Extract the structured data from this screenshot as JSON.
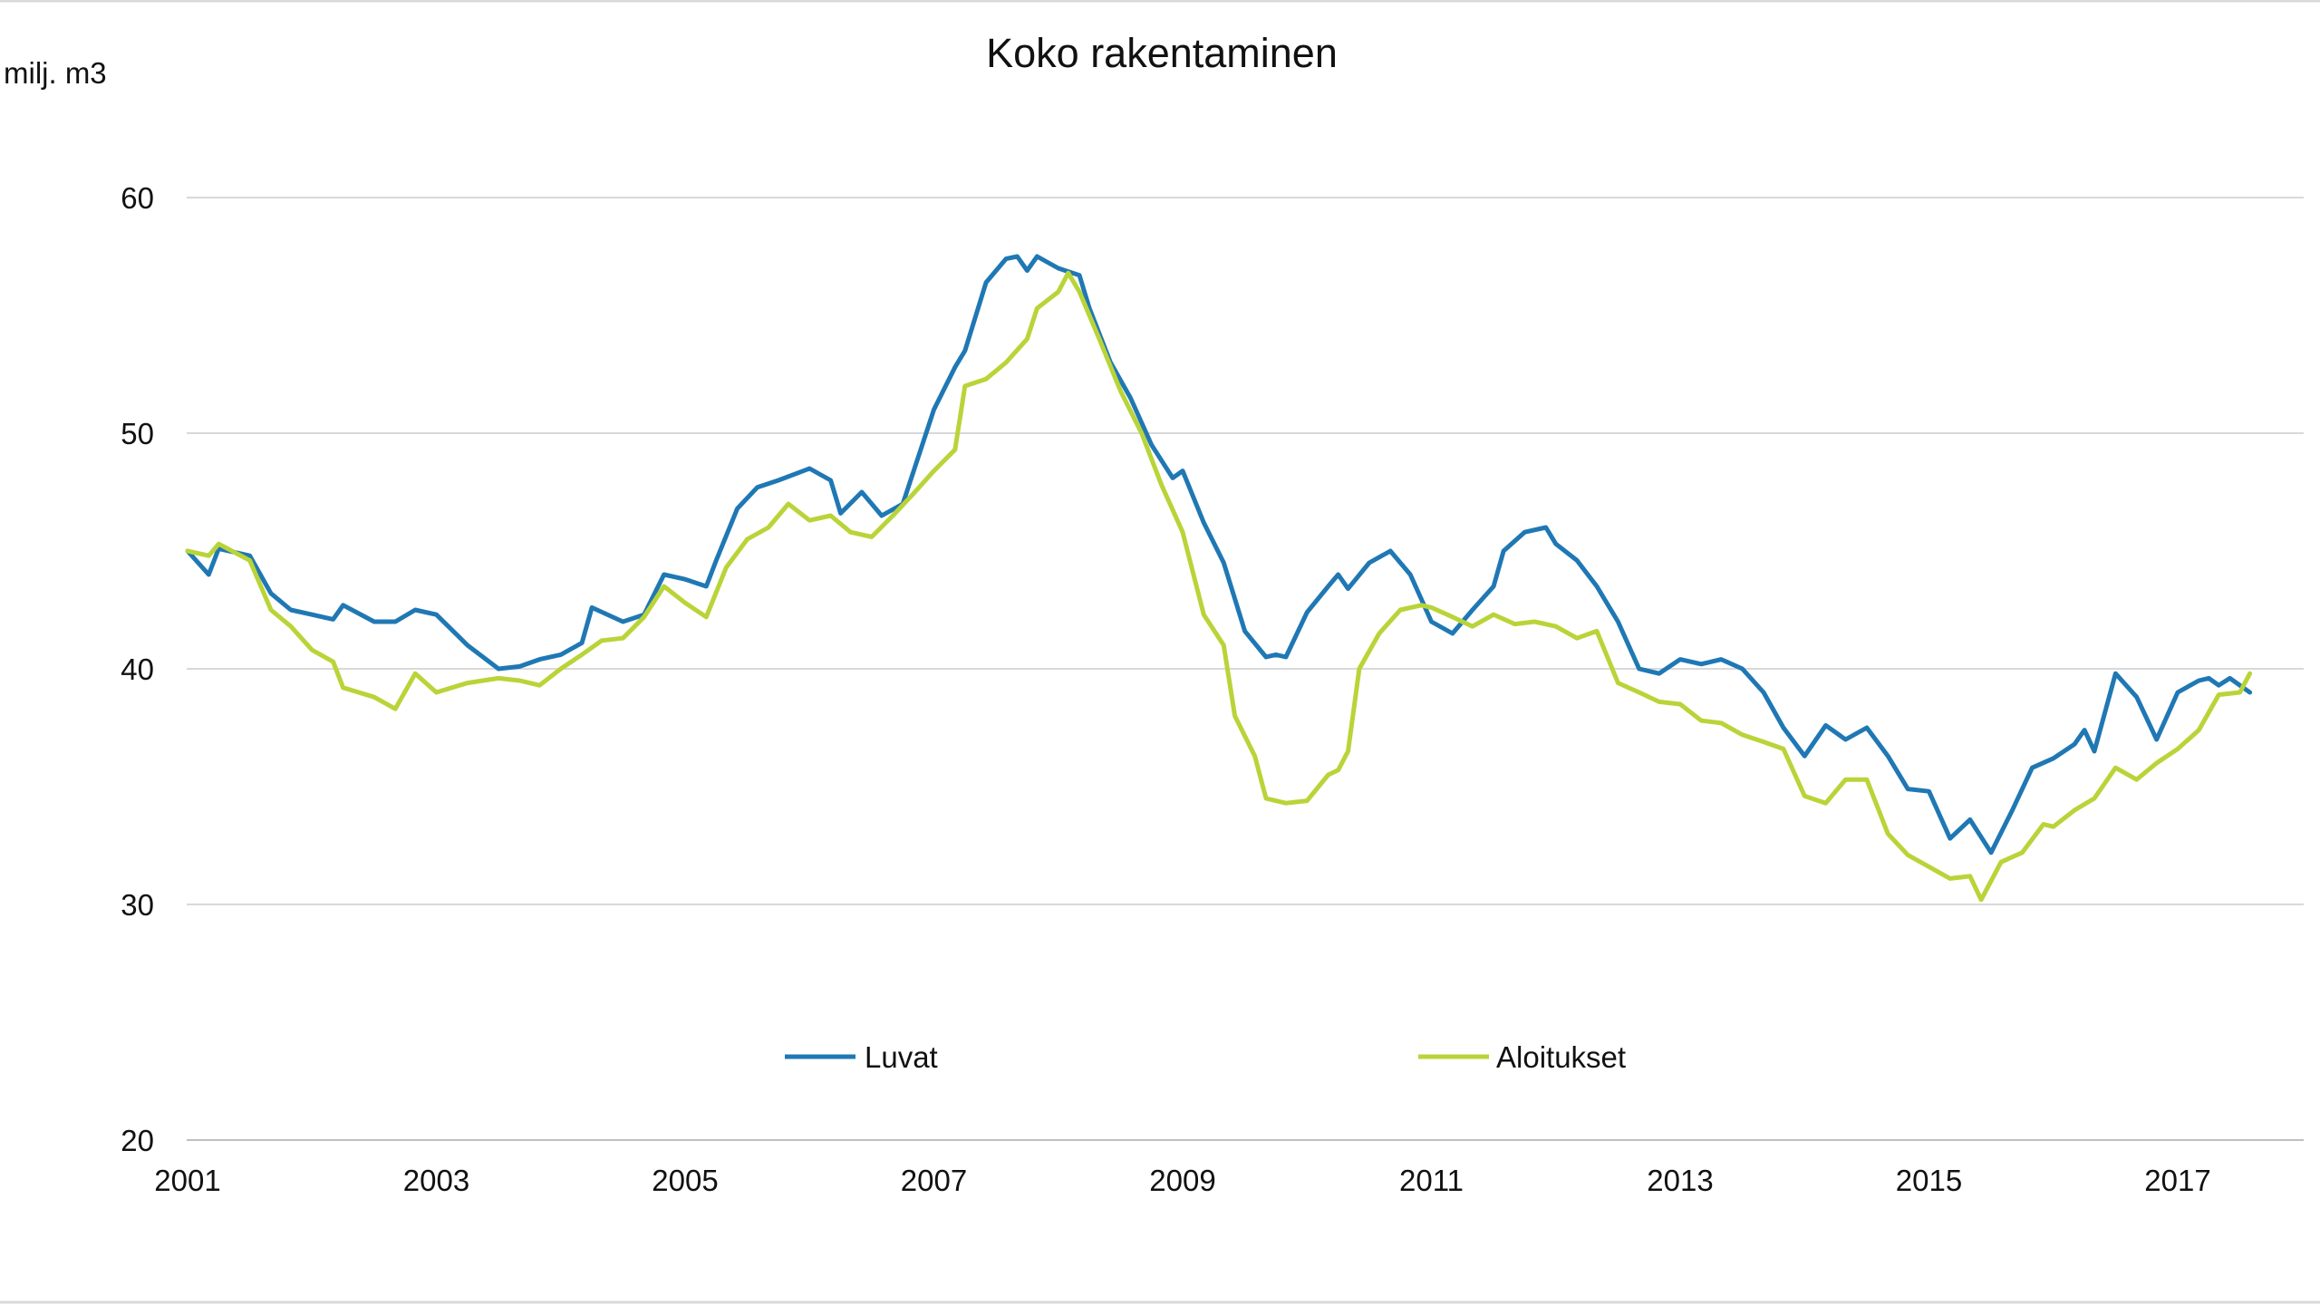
{
  "chart_data": {
    "type": "line",
    "title": "Koko rakentaminen",
    "ylabel": "milj. m3",
    "xlabel": "",
    "ylim": [
      20,
      60
    ],
    "xlim": [
      2001,
      2017.83
    ],
    "yticks": [
      20,
      30,
      40,
      50,
      60
    ],
    "xticks": [
      "2001",
      "2003",
      "2005",
      "2007",
      "2009",
      "2011",
      "2013",
      "2015",
      "2017"
    ],
    "grid": true,
    "legend_position": "inside-bottom-center",
    "series": [
      {
        "name": "Luvat",
        "color": "#1f78b4",
        "points": [
          [
            2001.0,
            45.0
          ],
          [
            2001.17,
            44.0
          ],
          [
            2001.25,
            45.1
          ],
          [
            2001.5,
            44.8
          ],
          [
            2001.67,
            43.2
          ],
          [
            2001.83,
            42.5
          ],
          [
            2002.0,
            42.3
          ],
          [
            2002.17,
            42.1
          ],
          [
            2002.25,
            42.7
          ],
          [
            2002.5,
            42.0
          ],
          [
            2002.67,
            42.0
          ],
          [
            2002.83,
            42.5
          ],
          [
            2003.0,
            42.3
          ],
          [
            2003.25,
            41.0
          ],
          [
            2003.5,
            40.0
          ],
          [
            2003.67,
            40.1
          ],
          [
            2003.83,
            40.4
          ],
          [
            2004.0,
            40.6
          ],
          [
            2004.17,
            41.1
          ],
          [
            2004.25,
            42.6
          ],
          [
            2004.5,
            42.0
          ],
          [
            2004.67,
            42.3
          ],
          [
            2004.83,
            44.0
          ],
          [
            2005.0,
            43.8
          ],
          [
            2005.17,
            43.5
          ],
          [
            2005.25,
            44.6
          ],
          [
            2005.42,
            46.8
          ],
          [
            2005.58,
            47.7
          ],
          [
            2005.75,
            48.0
          ],
          [
            2006.0,
            48.5
          ],
          [
            2006.17,
            48.0
          ],
          [
            2006.25,
            46.6
          ],
          [
            2006.42,
            47.5
          ],
          [
            2006.58,
            46.5
          ],
          [
            2006.75,
            47.0
          ],
          [
            2007.0,
            51.0
          ],
          [
            2007.17,
            52.8
          ],
          [
            2007.25,
            53.5
          ],
          [
            2007.42,
            56.4
          ],
          [
            2007.58,
            57.4
          ],
          [
            2007.67,
            57.5
          ],
          [
            2007.75,
            56.9
          ],
          [
            2007.83,
            57.5
          ],
          [
            2008.0,
            57.0
          ],
          [
            2008.17,
            56.7
          ],
          [
            2008.25,
            55.3
          ],
          [
            2008.42,
            53.0
          ],
          [
            2008.58,
            51.5
          ],
          [
            2008.75,
            49.5
          ],
          [
            2008.92,
            48.1
          ],
          [
            2009.0,
            48.4
          ],
          [
            2009.17,
            46.2
          ],
          [
            2009.33,
            44.5
          ],
          [
            2009.5,
            41.6
          ],
          [
            2009.67,
            40.5
          ],
          [
            2009.75,
            40.6
          ],
          [
            2009.83,
            40.5
          ],
          [
            2010.0,
            42.4
          ],
          [
            2010.17,
            43.5
          ],
          [
            2010.25,
            44.0
          ],
          [
            2010.33,
            43.4
          ],
          [
            2010.5,
            44.5
          ],
          [
            2010.67,
            45.0
          ],
          [
            2010.83,
            44.0
          ],
          [
            2011.0,
            42.0
          ],
          [
            2011.17,
            41.5
          ],
          [
            2011.33,
            42.5
          ],
          [
            2011.5,
            43.5
          ],
          [
            2011.58,
            45.0
          ],
          [
            2011.75,
            45.8
          ],
          [
            2011.92,
            46.0
          ],
          [
            2012.0,
            45.3
          ],
          [
            2012.17,
            44.6
          ],
          [
            2012.33,
            43.5
          ],
          [
            2012.5,
            42.0
          ],
          [
            2012.67,
            40.0
          ],
          [
            2012.83,
            39.8
          ],
          [
            2013.0,
            40.4
          ],
          [
            2013.17,
            40.2
          ],
          [
            2013.33,
            40.4
          ],
          [
            2013.5,
            40.0
          ],
          [
            2013.67,
            39.0
          ],
          [
            2013.83,
            37.5
          ],
          [
            2014.0,
            36.3
          ],
          [
            2014.17,
            37.6
          ],
          [
            2014.33,
            37.0
          ],
          [
            2014.5,
            37.5
          ],
          [
            2014.67,
            36.3
          ],
          [
            2014.83,
            34.9
          ],
          [
            2015.0,
            34.8
          ],
          [
            2015.17,
            32.8
          ],
          [
            2015.33,
            33.6
          ],
          [
            2015.5,
            32.2
          ],
          [
            2015.67,
            34.0
          ],
          [
            2015.83,
            35.8
          ],
          [
            2016.0,
            36.2
          ],
          [
            2016.17,
            36.8
          ],
          [
            2016.25,
            37.4
          ],
          [
            2016.33,
            36.5
          ],
          [
            2016.5,
            39.8
          ],
          [
            2016.67,
            38.8
          ],
          [
            2016.83,
            37.0
          ],
          [
            2017.0,
            39.0
          ],
          [
            2017.17,
            39.5
          ],
          [
            2017.25,
            39.6
          ],
          [
            2017.33,
            39.3
          ],
          [
            2017.42,
            39.6
          ],
          [
            2017.58,
            39.0
          ]
        ]
      },
      {
        "name": "Aloitukset",
        "color": "#b9d438",
        "points": [
          [
            2001.0,
            45.0
          ],
          [
            2001.17,
            44.8
          ],
          [
            2001.25,
            45.3
          ],
          [
            2001.5,
            44.6
          ],
          [
            2001.67,
            42.5
          ],
          [
            2001.83,
            41.8
          ],
          [
            2002.0,
            40.8
          ],
          [
            2002.17,
            40.3
          ],
          [
            2002.25,
            39.2
          ],
          [
            2002.5,
            38.8
          ],
          [
            2002.67,
            38.3
          ],
          [
            2002.83,
            39.8
          ],
          [
            2003.0,
            39.0
          ],
          [
            2003.25,
            39.4
          ],
          [
            2003.5,
            39.6
          ],
          [
            2003.67,
            39.5
          ],
          [
            2003.83,
            39.3
          ],
          [
            2004.0,
            40.0
          ],
          [
            2004.17,
            40.6
          ],
          [
            2004.33,
            41.2
          ],
          [
            2004.5,
            41.3
          ],
          [
            2004.67,
            42.2
          ],
          [
            2004.83,
            43.5
          ],
          [
            2005.0,
            42.8
          ],
          [
            2005.17,
            42.2
          ],
          [
            2005.33,
            44.3
          ],
          [
            2005.5,
            45.5
          ],
          [
            2005.67,
            46.0
          ],
          [
            2005.83,
            47.0
          ],
          [
            2006.0,
            46.3
          ],
          [
            2006.17,
            46.5
          ],
          [
            2006.33,
            45.8
          ],
          [
            2006.5,
            45.6
          ],
          [
            2006.67,
            46.5
          ],
          [
            2006.83,
            47.4
          ],
          [
            2007.0,
            48.4
          ],
          [
            2007.17,
            49.3
          ],
          [
            2007.25,
            52.0
          ],
          [
            2007.42,
            52.3
          ],
          [
            2007.58,
            53.0
          ],
          [
            2007.75,
            54.0
          ],
          [
            2007.83,
            55.3
          ],
          [
            2008.0,
            56.0
          ],
          [
            2008.08,
            56.8
          ],
          [
            2008.17,
            56.0
          ],
          [
            2008.33,
            54.0
          ],
          [
            2008.5,
            51.8
          ],
          [
            2008.67,
            50.0
          ],
          [
            2008.83,
            47.8
          ],
          [
            2009.0,
            45.8
          ],
          [
            2009.17,
            42.3
          ],
          [
            2009.33,
            41.0
          ],
          [
            2009.42,
            38.0
          ],
          [
            2009.58,
            36.3
          ],
          [
            2009.67,
            34.5
          ],
          [
            2009.83,
            34.3
          ],
          [
            2010.0,
            34.4
          ],
          [
            2010.17,
            35.5
          ],
          [
            2010.25,
            35.7
          ],
          [
            2010.33,
            36.5
          ],
          [
            2010.42,
            40.0
          ],
          [
            2010.58,
            41.5
          ],
          [
            2010.75,
            42.5
          ],
          [
            2010.92,
            42.7
          ],
          [
            2011.0,
            42.6
          ],
          [
            2011.17,
            42.2
          ],
          [
            2011.33,
            41.8
          ],
          [
            2011.5,
            42.3
          ],
          [
            2011.67,
            41.9
          ],
          [
            2011.83,
            42.0
          ],
          [
            2012.0,
            41.8
          ],
          [
            2012.17,
            41.3
          ],
          [
            2012.33,
            41.6
          ],
          [
            2012.5,
            39.4
          ],
          [
            2012.67,
            39.0
          ],
          [
            2012.83,
            38.6
          ],
          [
            2013.0,
            38.5
          ],
          [
            2013.17,
            37.8
          ],
          [
            2013.33,
            37.7
          ],
          [
            2013.5,
            37.2
          ],
          [
            2013.67,
            36.9
          ],
          [
            2013.83,
            36.6
          ],
          [
            2014.0,
            34.6
          ],
          [
            2014.17,
            34.3
          ],
          [
            2014.33,
            35.3
          ],
          [
            2014.5,
            35.3
          ],
          [
            2014.67,
            33.0
          ],
          [
            2014.83,
            32.1
          ],
          [
            2015.0,
            31.6
          ],
          [
            2015.17,
            31.1
          ],
          [
            2015.33,
            31.2
          ],
          [
            2015.42,
            30.2
          ],
          [
            2015.58,
            31.8
          ],
          [
            2015.75,
            32.2
          ],
          [
            2015.92,
            33.4
          ],
          [
            2016.0,
            33.3
          ],
          [
            2016.17,
            34.0
          ],
          [
            2016.33,
            34.5
          ],
          [
            2016.5,
            35.8
          ],
          [
            2016.67,
            35.3
          ],
          [
            2016.83,
            36.0
          ],
          [
            2017.0,
            36.6
          ],
          [
            2017.17,
            37.4
          ],
          [
            2017.33,
            38.9
          ],
          [
            2017.5,
            39.0
          ],
          [
            2017.58,
            39.8
          ]
        ]
      }
    ]
  }
}
